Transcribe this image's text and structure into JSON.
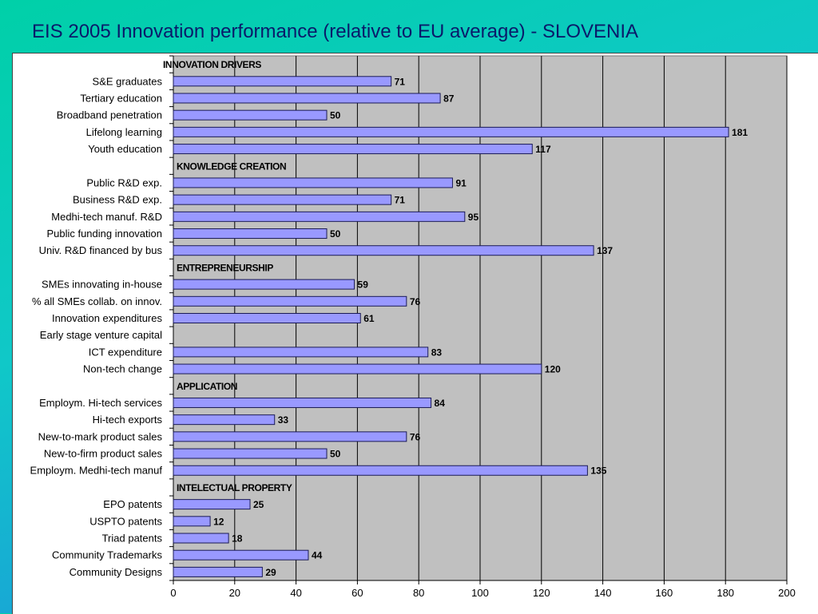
{
  "slide": {
    "title": "EIS 2005 Innovation performance (relative to EU average) - SLOVENIA"
  },
  "colors": {
    "bar_fill": "#9999ff",
    "bar_stroke": "#1a1a55",
    "plot_bg": "#c0c0c0"
  },
  "chart_data": {
    "type": "bar",
    "orientation": "horizontal",
    "xlim": [
      0,
      200
    ],
    "xticks": [
      0,
      20,
      40,
      60,
      80,
      100,
      120,
      140,
      160,
      180,
      200
    ],
    "grid": "vertical",
    "rows": [
      {
        "label": "INNOVATION DRIVERS",
        "header": true
      },
      {
        "label": "S&E graduates",
        "value": 71
      },
      {
        "label": "Tertiary education",
        "value": 87
      },
      {
        "label": "Broadband penetration",
        "value": 50
      },
      {
        "label": "Lifelong learning",
        "value": 181
      },
      {
        "label": "Youth education",
        "value": 117
      },
      {
        "label": "KNOWLEDGE CREATION",
        "header": true
      },
      {
        "label": "Public R&D exp.",
        "value": 91
      },
      {
        "label": "Business R&D exp.",
        "value": 71
      },
      {
        "label": "Medhi-tech manuf. R&D",
        "value": 95
      },
      {
        "label": "Public funding innovation",
        "value": 50
      },
      {
        "label": "Univ. R&D financed by bus",
        "value": 137
      },
      {
        "label": "ENTREPRENEURSHIP",
        "header": true
      },
      {
        "label": "SMEs innovating in-house",
        "value": 59
      },
      {
        "label": "% all SMEs collab. on innov.",
        "value": 76
      },
      {
        "label": "Innovation expenditures",
        "value": 61
      },
      {
        "label": "Early stage venture capital",
        "value": null
      },
      {
        "label": "ICT expenditure",
        "value": 83
      },
      {
        "label": "Non-tech change",
        "value": 120
      },
      {
        "label": "APPLICATION",
        "header": true
      },
      {
        "label": "Employm. Hi-tech services",
        "value": 84
      },
      {
        "label": "Hi-tech exports",
        "value": 33
      },
      {
        "label": "New-to-mark product sales",
        "value": 76
      },
      {
        "label": "New-to-firm product sales",
        "value": 50
      },
      {
        "label": "Employm. Medhi-tech manuf",
        "value": 135
      },
      {
        "label": "INTELECTUAL PROPERTY",
        "header": true
      },
      {
        "label": "EPO patents",
        "value": 25
      },
      {
        "label": "USPTO patents",
        "value": 12
      },
      {
        "label": "Triad patents",
        "value": 18
      },
      {
        "label": "Community Trademarks",
        "value": 44
      },
      {
        "label": "Community Designs",
        "value": 29
      }
    ]
  }
}
